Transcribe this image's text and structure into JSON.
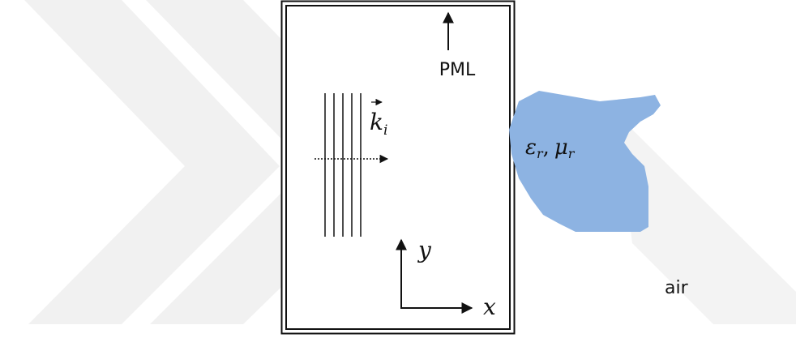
{
  "boundary_label": "PML",
  "incident_wave": {
    "symbol": "k",
    "subscript": "i"
  },
  "scatterer": {
    "permittivity": {
      "symbol": "ε",
      "subscript": "r"
    },
    "separator": ",",
    "permeability": {
      "symbol": "μ",
      "subscript": "r"
    }
  },
  "axes": {
    "y": "y",
    "x": "x"
  },
  "background_label": "air"
}
